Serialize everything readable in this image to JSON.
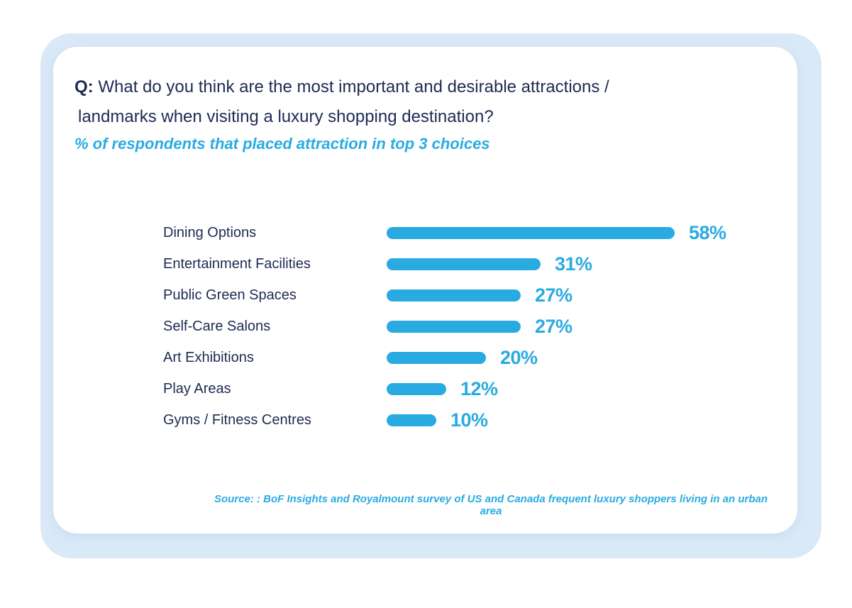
{
  "question": {
    "prefix": "Q:",
    "line1": " What do you think are the most important and desirable attractions /",
    "line2": "landmarks when visiting a luxury shopping destination?"
  },
  "subtitle": "% of respondents that placed attraction in top 3 choices",
  "source": "Source: : BoF Insights and Royalmount survey of US and Canada frequent luxury shoppers living in an urban area",
  "chart_data": {
    "type": "bar",
    "orientation": "horizontal",
    "title": "Q: What do you think are the most important and desirable attractions / landmarks when visiting a luxury shopping destination?",
    "subtitle": "% of respondents that placed attraction in top 3 choices",
    "categories": [
      "Dining Options",
      "Entertainment Facilities",
      "Public Green Spaces",
      "Self-Care Salons",
      "Art Exhibitions",
      "Play Areas",
      "Gyms / Fitness Centres"
    ],
    "values": [
      58,
      31,
      27,
      27,
      20,
      12,
      10
    ],
    "value_suffix": "%",
    "xlabel": "",
    "ylabel": "",
    "xlim": [
      0,
      60
    ],
    "grid": false,
    "legend": false,
    "bar_color": "#29ABE2",
    "value_label_color": "#29ABE2",
    "category_label_color": "#1E2A52"
  },
  "colors": {
    "backdrop": "#DAE9F8",
    "card": "#FFFFFF",
    "accent_blue": "#29ABE2",
    "navy": "#1E2A52"
  }
}
